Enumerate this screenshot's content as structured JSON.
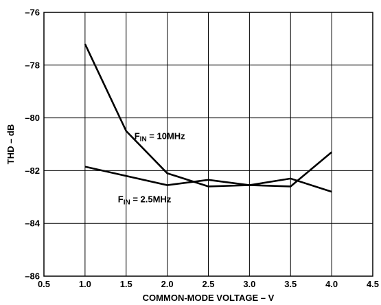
{
  "chart_data": {
    "type": "line",
    "title": "",
    "xlabel": "COMMON-MODE VOLTAGE – V",
    "ylabel": "THD – dB",
    "xlim": [
      0.5,
      4.5
    ],
    "ylim": [
      -86,
      -76
    ],
    "xticks": [
      "0.5",
      "1.0",
      "1.5",
      "2.0",
      "2.5",
      "3.0",
      "3.5",
      "4.0",
      "4.5"
    ],
    "yticks": [
      "–76",
      "–78",
      "–80",
      "–82",
      "–84",
      "–86"
    ],
    "grid": true,
    "series": [
      {
        "name": "F_IN = 10MHz",
        "x": [
          1.0,
          1.5,
          2.0,
          2.5,
          3.0,
          3.5,
          4.0
        ],
        "values": [
          -77.2,
          -80.5,
          -82.1,
          -82.6,
          -82.55,
          -82.6,
          -81.3
        ]
      },
      {
        "name": "F_IN = 2.5MHz",
        "x": [
          1.0,
          1.5,
          2.0,
          2.5,
          3.0,
          3.5,
          4.0
        ],
        "values": [
          -81.85,
          -82.2,
          -82.55,
          -82.35,
          -82.55,
          -82.3,
          -82.8
        ]
      }
    ],
    "annotations": [
      {
        "prefix": "F",
        "sub": "IN",
        "suffix": " = 10MHz",
        "x": 1.6,
        "y": -80.8
      },
      {
        "prefix": "F",
        "sub": "IN",
        "suffix": " = 2.5MHz",
        "x": 1.4,
        "y": -83.2
      }
    ]
  }
}
